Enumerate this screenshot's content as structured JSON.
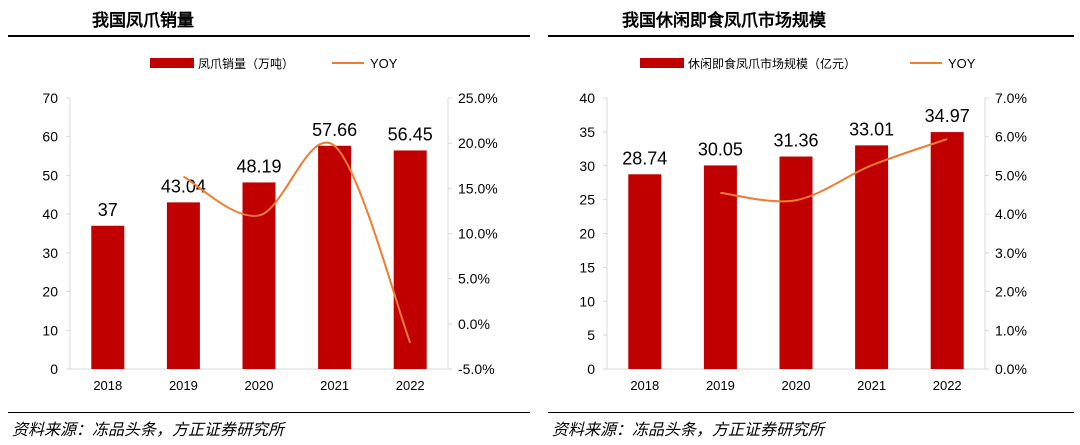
{
  "left_panel": {
    "title": "我国凤爪销量",
    "source": "资料来源：冻品头条，方正证券研究所"
  },
  "right_panel": {
    "title": "我国休闲即食凤爪市场规模",
    "source": "资料来源：冻品头条，方正证券研究所"
  },
  "colors": {
    "bar": "#C00000",
    "line": "#ED7D31",
    "axis": "#D9D9D9",
    "text": "#000000"
  },
  "chart_data": [
    {
      "type": "bar",
      "title": "我国凤爪销量",
      "categories": [
        "2018",
        "2019",
        "2020",
        "2021",
        "2022"
      ],
      "series": [
        {
          "name": "凤爪销量（万吨）",
          "type": "bar",
          "axis": "left",
          "values": [
            37,
            43.04,
            48.19,
            57.66,
            56.45
          ]
        },
        {
          "name": "YOY",
          "type": "line",
          "axis": "right",
          "values": [
            null,
            16.3,
            12.0,
            19.7,
            -2.1
          ]
        }
      ],
      "data_labels": [
        "37",
        "43.04",
        "48.19",
        "57.66",
        "56.45"
      ],
      "y_left": {
        "min": 0,
        "max": 70,
        "step": 10,
        "ticks": [
          "0",
          "10",
          "20",
          "30",
          "40",
          "50",
          "60",
          "70"
        ]
      },
      "y_right": {
        "min": -5,
        "max": 25,
        "step": 5,
        "ticks": [
          "-5.0%",
          "0.0%",
          "5.0%",
          "10.0%",
          "15.0%",
          "20.0%",
          "25.0%"
        ]
      },
      "legend": [
        "凤爪销量（万吨）",
        "YOY"
      ],
      "legend_position": "top"
    },
    {
      "type": "bar",
      "title": "我国休闲即食凤爪市场规模",
      "categories": [
        "2018",
        "2019",
        "2020",
        "2021",
        "2022"
      ],
      "series": [
        {
          "name": "休闲即食凤爪市场规模（亿元）",
          "type": "bar",
          "axis": "left",
          "values": [
            28.74,
            30.05,
            31.36,
            33.01,
            34.97
          ]
        },
        {
          "name": "YOY",
          "type": "line",
          "axis": "right",
          "values": [
            null,
            4.55,
            4.36,
            5.26,
            5.94
          ]
        }
      ],
      "data_labels": [
        "28.74",
        "30.05",
        "31.36",
        "33.01",
        "34.97"
      ],
      "y_left": {
        "min": 0,
        "max": 40,
        "step": 5,
        "ticks": [
          "0",
          "5",
          "10",
          "15",
          "20",
          "25",
          "30",
          "35",
          "40"
        ]
      },
      "y_right": {
        "min": 0,
        "max": 7,
        "step": 1,
        "ticks": [
          "0.0%",
          "1.0%",
          "2.0%",
          "3.0%",
          "4.0%",
          "5.0%",
          "6.0%",
          "7.0%"
        ]
      },
      "legend": [
        "休闲即食凤爪市场规模（亿元）",
        "YOY"
      ],
      "legend_position": "top"
    }
  ]
}
